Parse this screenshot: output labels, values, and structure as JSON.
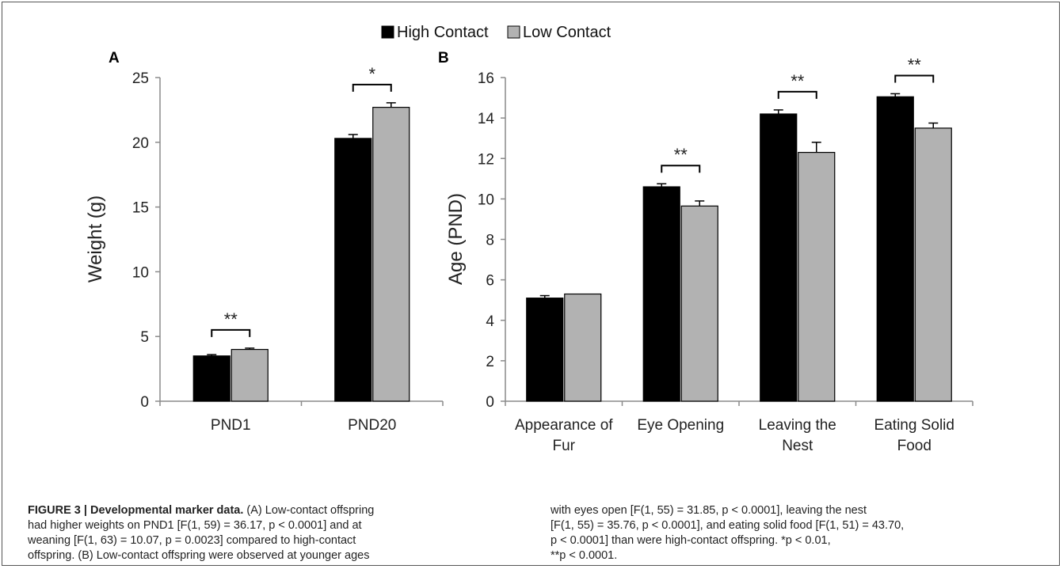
{
  "legend": {
    "items": [
      {
        "label": "High Contact",
        "color": "#000000"
      },
      {
        "label": "Low Contact",
        "color": "#b2b2b2"
      }
    ]
  },
  "chart_data": [
    {
      "panel": "A",
      "type": "bar",
      "ylabel": "Weight (g)",
      "xlabel": "",
      "ylim": [
        0,
        25
      ],
      "yticks": [
        0,
        5,
        10,
        15,
        20,
        25
      ],
      "grid": false,
      "categories": [
        [
          "PND1"
        ],
        [
          "PND20"
        ]
      ],
      "series": [
        {
          "name": "High Contact",
          "color": "#000000",
          "values": [
            3.5,
            20.3
          ],
          "errors": [
            0.1,
            0.3
          ]
        },
        {
          "name": "Low Contact",
          "color": "#b2b2b2",
          "values": [
            4.0,
            22.7
          ],
          "errors": [
            0.1,
            0.35
          ]
        }
      ],
      "significance": [
        "**",
        "*"
      ]
    },
    {
      "panel": "B",
      "type": "bar",
      "ylabel": "Age (PND)",
      "xlabel": "",
      "ylim": [
        0,
        16
      ],
      "yticks": [
        0,
        2,
        4,
        6,
        8,
        10,
        12,
        14,
        16
      ],
      "grid": false,
      "categories": [
        [
          "Appearance of",
          "Fur"
        ],
        [
          "Eye Opening"
        ],
        [
          "Leaving the",
          "Nest"
        ],
        [
          "Eating Solid",
          "Food"
        ]
      ],
      "series": [
        {
          "name": "High Contact",
          "color": "#000000",
          "values": [
            5.1,
            10.6,
            14.2,
            15.05
          ],
          "errors": [
            0.12,
            0.15,
            0.2,
            0.15
          ]
        },
        {
          "name": "Low Contact",
          "color": "#b2b2b2",
          "values": [
            5.3,
            9.65,
            12.3,
            13.5
          ],
          "errors": [
            0.0,
            0.25,
            0.5,
            0.25
          ]
        }
      ],
      "significance": [
        "",
        "**",
        "**",
        "**"
      ]
    }
  ],
  "caption": {
    "title": "FIGURE 3 | Developmental marker data.",
    "left_lines": [
      " (A) Low-contact offspring",
      "had higher weights on PND1 [F(1, 59) = 36.17, p < 0.0001] and at",
      "weaning [F(1, 63) = 10.07, p = 0.0023] compared to high-contact",
      "offspring. (B) Low-contact offspring were observed at younger ages"
    ],
    "right_lines": [
      "with eyes open [F(1, 55) = 31.85, p < 0.0001], leaving the nest",
      "[F(1, 55) = 35.76, p < 0.0001], and eating solid food [F(1, 51) = 43.70,",
      "p < 0.0001] than were high-contact offspring. *p < 0.01,",
      "**p < 0.0001."
    ]
  }
}
